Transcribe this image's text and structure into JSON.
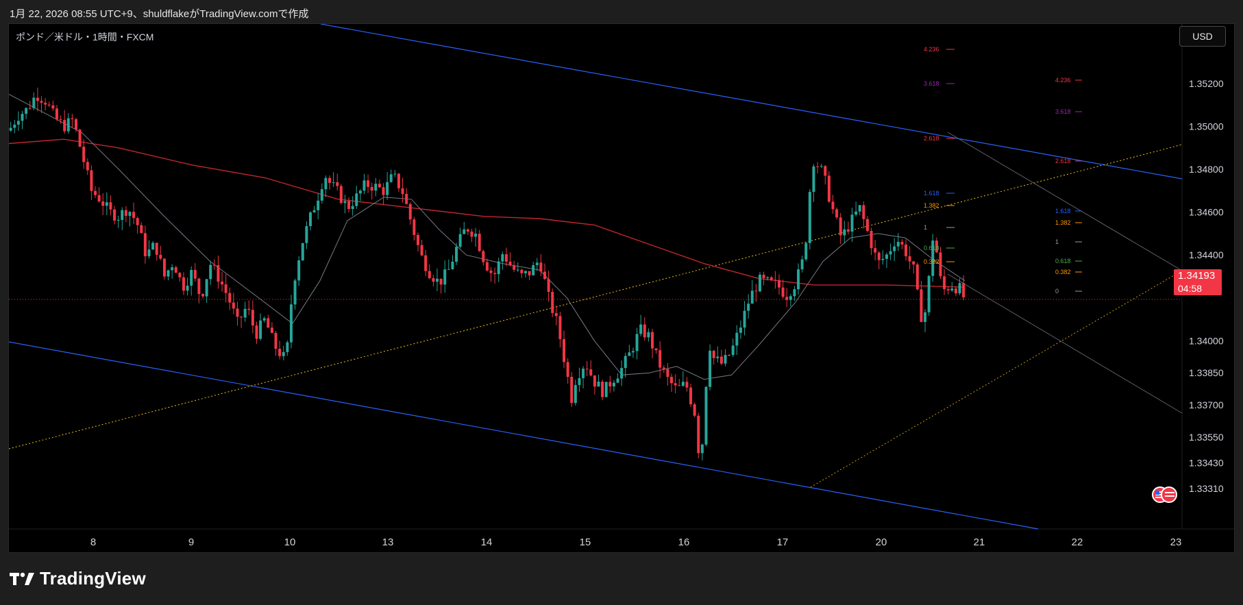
{
  "header": {
    "text": "1月 22, 2026 08:55 UTC+9、shuldflakeがTradingView.comで作成"
  },
  "chart": {
    "symbol": "ポンド／米ドル・1時間・FXCM",
    "currency": "USD",
    "price_tag": {
      "price": "1.34193",
      "countdown": "04:58"
    }
  },
  "footer": {
    "brand": "TradingView"
  },
  "colors": {
    "up": "#26a69a",
    "down": "#f23645",
    "ma_slow": "#c2272d",
    "ma_fast": "#787b86",
    "channel": "#2962ff",
    "trendline": "#f5c518",
    "grid_text": "#d1d4dc"
  },
  "chart_data": {
    "type": "candlestick",
    "title": "",
    "xlabel": "",
    "ylabel": "",
    "ylim": [
      1.3324,
      1.3535
    ],
    "x_ticks": [
      "8",
      "9",
      "10",
      "13",
      "14",
      "15",
      "16",
      "17",
      "20",
      "21",
      "22",
      "23"
    ],
    "y_ticks": [
      "1.35200",
      "1.35000",
      "1.34800",
      "1.34600",
      "1.34400",
      "1.34000",
      "1.33850",
      "1.33700",
      "1.33550",
      "1.33430",
      "1.33310"
    ],
    "y_tick_values": [
      1.352,
      1.35,
      1.348,
      1.346,
      1.344,
      1.34,
      1.3385,
      1.337,
      1.3355,
      1.3343,
      1.3331
    ],
    "last_price": 1.34193,
    "close_path": [
      [
        0,
        1.3498
      ],
      [
        10,
        1.3505
      ],
      [
        20,
        1.3508
      ],
      [
        30,
        1.3515
      ],
      [
        40,
        1.3512
      ],
      [
        50,
        1.3504
      ],
      [
        60,
        1.35
      ],
      [
        70,
        1.3503
      ],
      [
        80,
        1.3487
      ],
      [
        90,
        1.347
      ],
      [
        100,
        1.3466
      ],
      [
        110,
        1.346
      ],
      [
        120,
        1.3458
      ],
      [
        130,
        1.3462
      ],
      [
        140,
        1.3455
      ],
      [
        150,
        1.344
      ],
      [
        160,
        1.3445
      ],
      [
        170,
        1.343
      ],
      [
        180,
        1.3437
      ],
      [
        190,
        1.3425
      ],
      [
        200,
        1.3432
      ],
      [
        210,
        1.342
      ],
      [
        220,
        1.3436
      ],
      [
        230,
        1.3429
      ],
      [
        240,
        1.342
      ],
      [
        250,
        1.3408
      ],
      [
        260,
        1.3416
      ],
      [
        270,
        1.3403
      ],
      [
        280,
        1.341
      ],
      [
        290,
        1.3398
      ],
      [
        300,
        1.3392
      ],
      [
        305,
        1.3398
      ],
      [
        310,
        1.3425
      ],
      [
        320,
        1.3445
      ],
      [
        330,
        1.3458
      ],
      [
        340,
        1.347
      ],
      [
        345,
        1.3478
      ],
      [
        350,
        1.3474
      ],
      [
        360,
        1.3469
      ],
      [
        370,
        1.3462
      ],
      [
        380,
        1.3467
      ],
      [
        390,
        1.3473
      ],
      [
        400,
        1.3472
      ],
      [
        410,
        1.347
      ],
      [
        420,
        1.3477
      ],
      [
        430,
        1.347
      ],
      [
        440,
        1.3455
      ],
      [
        450,
        1.344
      ],
      [
        460,
        1.3432
      ],
      [
        470,
        1.3427
      ],
      [
        480,
        1.3432
      ],
      [
        490,
        1.3444
      ],
      [
        500,
        1.3453
      ],
      [
        510,
        1.345
      ],
      [
        520,
        1.3437
      ],
      [
        530,
        1.343
      ],
      [
        540,
        1.3441
      ],
      [
        550,
        1.3434
      ],
      [
        560,
        1.343
      ],
      [
        570,
        1.3432
      ],
      [
        580,
        1.3438
      ],
      [
        590,
        1.342
      ],
      [
        600,
        1.3407
      ],
      [
        610,
        1.3385
      ],
      [
        615,
        1.3373
      ],
      [
        620,
        1.3383
      ],
      [
        630,
        1.339
      ],
      [
        640,
        1.3381
      ],
      [
        650,
        1.3376
      ],
      [
        660,
        1.3382
      ],
      [
        670,
        1.3387
      ],
      [
        680,
        1.3395
      ],
      [
        690,
        1.3405
      ],
      [
        700,
        1.3402
      ],
      [
        710,
        1.339
      ],
      [
        720,
        1.3382
      ],
      [
        730,
        1.3377
      ],
      [
        740,
        1.338
      ],
      [
        750,
        1.3366
      ],
      [
        756,
        1.334
      ],
      [
        760,
        1.3365
      ],
      [
        765,
        1.34
      ],
      [
        770,
        1.3392
      ],
      [
        780,
        1.3389
      ],
      [
        790,
        1.3395
      ],
      [
        800,
        1.3407
      ],
      [
        810,
        1.342
      ],
      [
        820,
        1.3428
      ],
      [
        830,
        1.3427
      ],
      [
        840,
        1.3426
      ],
      [
        850,
        1.3421
      ],
      [
        860,
        1.3427
      ],
      [
        870,
        1.344
      ],
      [
        875,
        1.3468
      ],
      [
        880,
        1.3485
      ],
      [
        890,
        1.3478
      ],
      [
        900,
        1.3462
      ],
      [
        910,
        1.3448
      ],
      [
        920,
        1.3455
      ],
      [
        930,
        1.3462
      ],
      [
        940,
        1.3449
      ],
      [
        950,
        1.3436
      ],
      [
        960,
        1.344
      ],
      [
        970,
        1.3448
      ],
      [
        980,
        1.3442
      ],
      [
        990,
        1.3432
      ],
      [
        995,
        1.3415
      ],
      [
        1000,
        1.3408
      ],
      [
        1005,
        1.3425
      ],
      [
        1010,
        1.3448
      ],
      [
        1015,
        1.344
      ],
      [
        1020,
        1.3423
      ],
      [
        1030,
        1.3426
      ],
      [
        1040,
        1.3424
      ],
      [
        1045,
        1.3419
      ]
    ],
    "moving_averages": [
      {
        "kind": "slow",
        "points": [
          [
            0,
            1.3492
          ],
          [
            60,
            1.3494
          ],
          [
            120,
            1.349
          ],
          [
            200,
            1.3482
          ],
          [
            280,
            1.3476
          ],
          [
            360,
            1.3466
          ],
          [
            440,
            1.3462
          ],
          [
            520,
            1.3458
          ],
          [
            580,
            1.3457
          ],
          [
            640,
            1.3454
          ],
          [
            700,
            1.3445
          ],
          [
            760,
            1.3436
          ],
          [
            820,
            1.3429
          ],
          [
            880,
            1.3426
          ],
          [
            960,
            1.3426
          ],
          [
            1045,
            1.3425
          ]
        ]
      },
      {
        "kind": "fast",
        "points": [
          [
            0,
            1.3515
          ],
          [
            40,
            1.3506
          ],
          [
            80,
            1.3497
          ],
          [
            120,
            1.348
          ],
          [
            170,
            1.3458
          ],
          [
            220,
            1.3437
          ],
          [
            270,
            1.3421
          ],
          [
            310,
            1.3408
          ],
          [
            340,
            1.3428
          ],
          [
            370,
            1.3456
          ],
          [
            410,
            1.3467
          ],
          [
            440,
            1.3466
          ],
          [
            470,
            1.3452
          ],
          [
            500,
            1.344
          ],
          [
            540,
            1.3436
          ],
          [
            580,
            1.3433
          ],
          [
            610,
            1.342
          ],
          [
            640,
            1.34
          ],
          [
            670,
            1.3384
          ],
          [
            700,
            1.3385
          ],
          [
            730,
            1.3388
          ],
          [
            760,
            1.3382
          ],
          [
            790,
            1.3384
          ],
          [
            820,
            1.3398
          ],
          [
            860,
            1.3418
          ],
          [
            890,
            1.3437
          ],
          [
            920,
            1.3448
          ],
          [
            950,
            1.345
          ],
          [
            980,
            1.3448
          ],
          [
            1010,
            1.3438
          ],
          [
            1045,
            1.3428
          ]
        ]
      }
    ],
    "fib_levels_1": [
      "4.236",
      "3.618",
      "2.618",
      "1.618",
      "1.382",
      "1",
      "0.618",
      "0.382"
    ],
    "fib_levels_2": [
      "4.236",
      "3.618",
      "2.618",
      "1.618",
      "1.382",
      "1",
      "0.618",
      "0.382",
      "0"
    ]
  }
}
